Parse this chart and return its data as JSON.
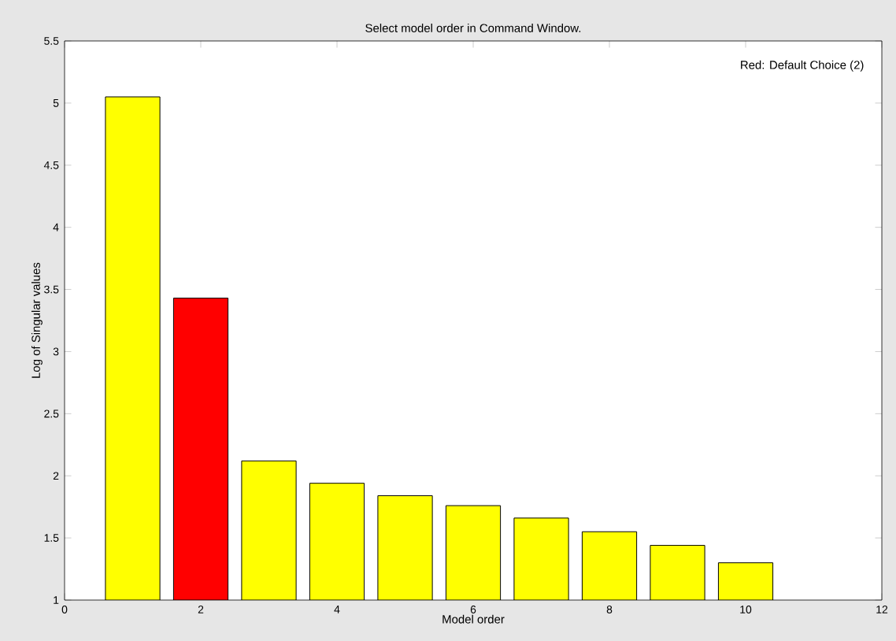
{
  "chart_data": {
    "type": "bar",
    "title": "Select model order in Command Window.",
    "xlabel": "Model order",
    "ylabel": "Log of Singular values",
    "x": [
      1,
      2,
      3,
      4,
      5,
      6,
      7,
      8,
      9,
      10
    ],
    "values": [
      5.05,
      3.43,
      2.12,
      1.94,
      1.84,
      1.76,
      1.66,
      1.55,
      1.44,
      1.3
    ],
    "colors": [
      "#ffff00",
      "#ff0000",
      "#ffff00",
      "#ffff00",
      "#ffff00",
      "#ffff00",
      "#ffff00",
      "#ffff00",
      "#ffff00",
      "#ffff00"
    ],
    "xlim": [
      0,
      12
    ],
    "xticks": [
      0,
      2,
      4,
      6,
      8,
      10,
      12
    ],
    "ylim": [
      1,
      5.5
    ],
    "yticks": [
      1,
      1.5,
      2,
      2.5,
      3,
      3.5,
      4,
      4.5,
      5,
      5.5
    ],
    "annotations": [
      "Red: Default Choice (2)"
    ]
  }
}
